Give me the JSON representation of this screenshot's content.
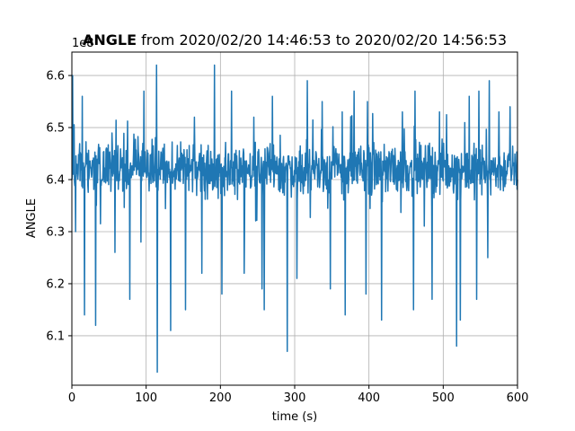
{
  "chart_data": {
    "type": "line",
    "title_bold": "ANGLE",
    "title_rest": " from 2020/02/20 14:46:53 to 2020/02/20 14:56:53",
    "xlabel": "time (s)",
    "ylabel": "ANGLE",
    "y_offset_label": "1e8",
    "xlim": [
      0,
      600
    ],
    "ylim": [
      6.005,
      6.645
    ],
    "grid": true,
    "x_ticks": [
      0,
      100,
      200,
      300,
      400,
      500,
      600
    ],
    "x_tick_labels": [
      "0",
      "100",
      "200",
      "300",
      "400",
      "500",
      "600"
    ],
    "y_ticks": [
      6.1,
      6.2,
      6.3,
      6.4,
      6.5,
      6.6
    ],
    "y_tick_labels": [
      "6.1",
      "6.2",
      "6.3",
      "6.4",
      "6.5",
      "6.6"
    ],
    "series": [
      {
        "color": "#1f77b4",
        "base_level": 6.42,
        "band_low": 6.35,
        "band_high": 6.49,
        "x": [
          0,
          1,
          5,
          10,
          14,
          17,
          20,
          32,
          47,
          58,
          66,
          78,
          83,
          93,
          97,
          105,
          114,
          115,
          122,
          133,
          153,
          165,
          175,
          190,
          192,
          202,
          215,
          217,
          232,
          245,
          256,
          259,
          270,
          286,
          290,
          303,
          317,
          322,
          337,
          348,
          364,
          368,
          373,
          380,
          396,
          398,
          417,
          435,
          445,
          460,
          462,
          472,
          485,
          495,
          518,
          523,
          535,
          545,
          548,
          560,
          562,
          575,
          580,
          590,
          600
        ],
        "y": [
          6.4,
          6.6,
          6.3,
          6.45,
          6.56,
          6.14,
          6.44,
          6.12,
          6.46,
          6.26,
          6.44,
          6.17,
          6.45,
          6.28,
          6.57,
          6.4,
          6.62,
          6.03,
          6.45,
          6.11,
          6.15,
          6.52,
          6.22,
          6.43,
          6.62,
          6.18,
          6.57,
          6.4,
          6.22,
          6.52,
          6.19,
          6.15,
          6.56,
          6.37,
          6.07,
          6.21,
          6.59,
          6.38,
          6.55,
          6.19,
          6.53,
          6.14,
          6.41,
          6.57,
          6.18,
          6.55,
          6.13,
          6.46,
          6.53,
          6.15,
          6.57,
          6.4,
          6.17,
          6.53,
          6.08,
          6.13,
          6.56,
          6.17,
          6.57,
          6.25,
          6.59,
          6.53,
          6.4,
          6.54,
          6.4
        ]
      }
    ]
  }
}
